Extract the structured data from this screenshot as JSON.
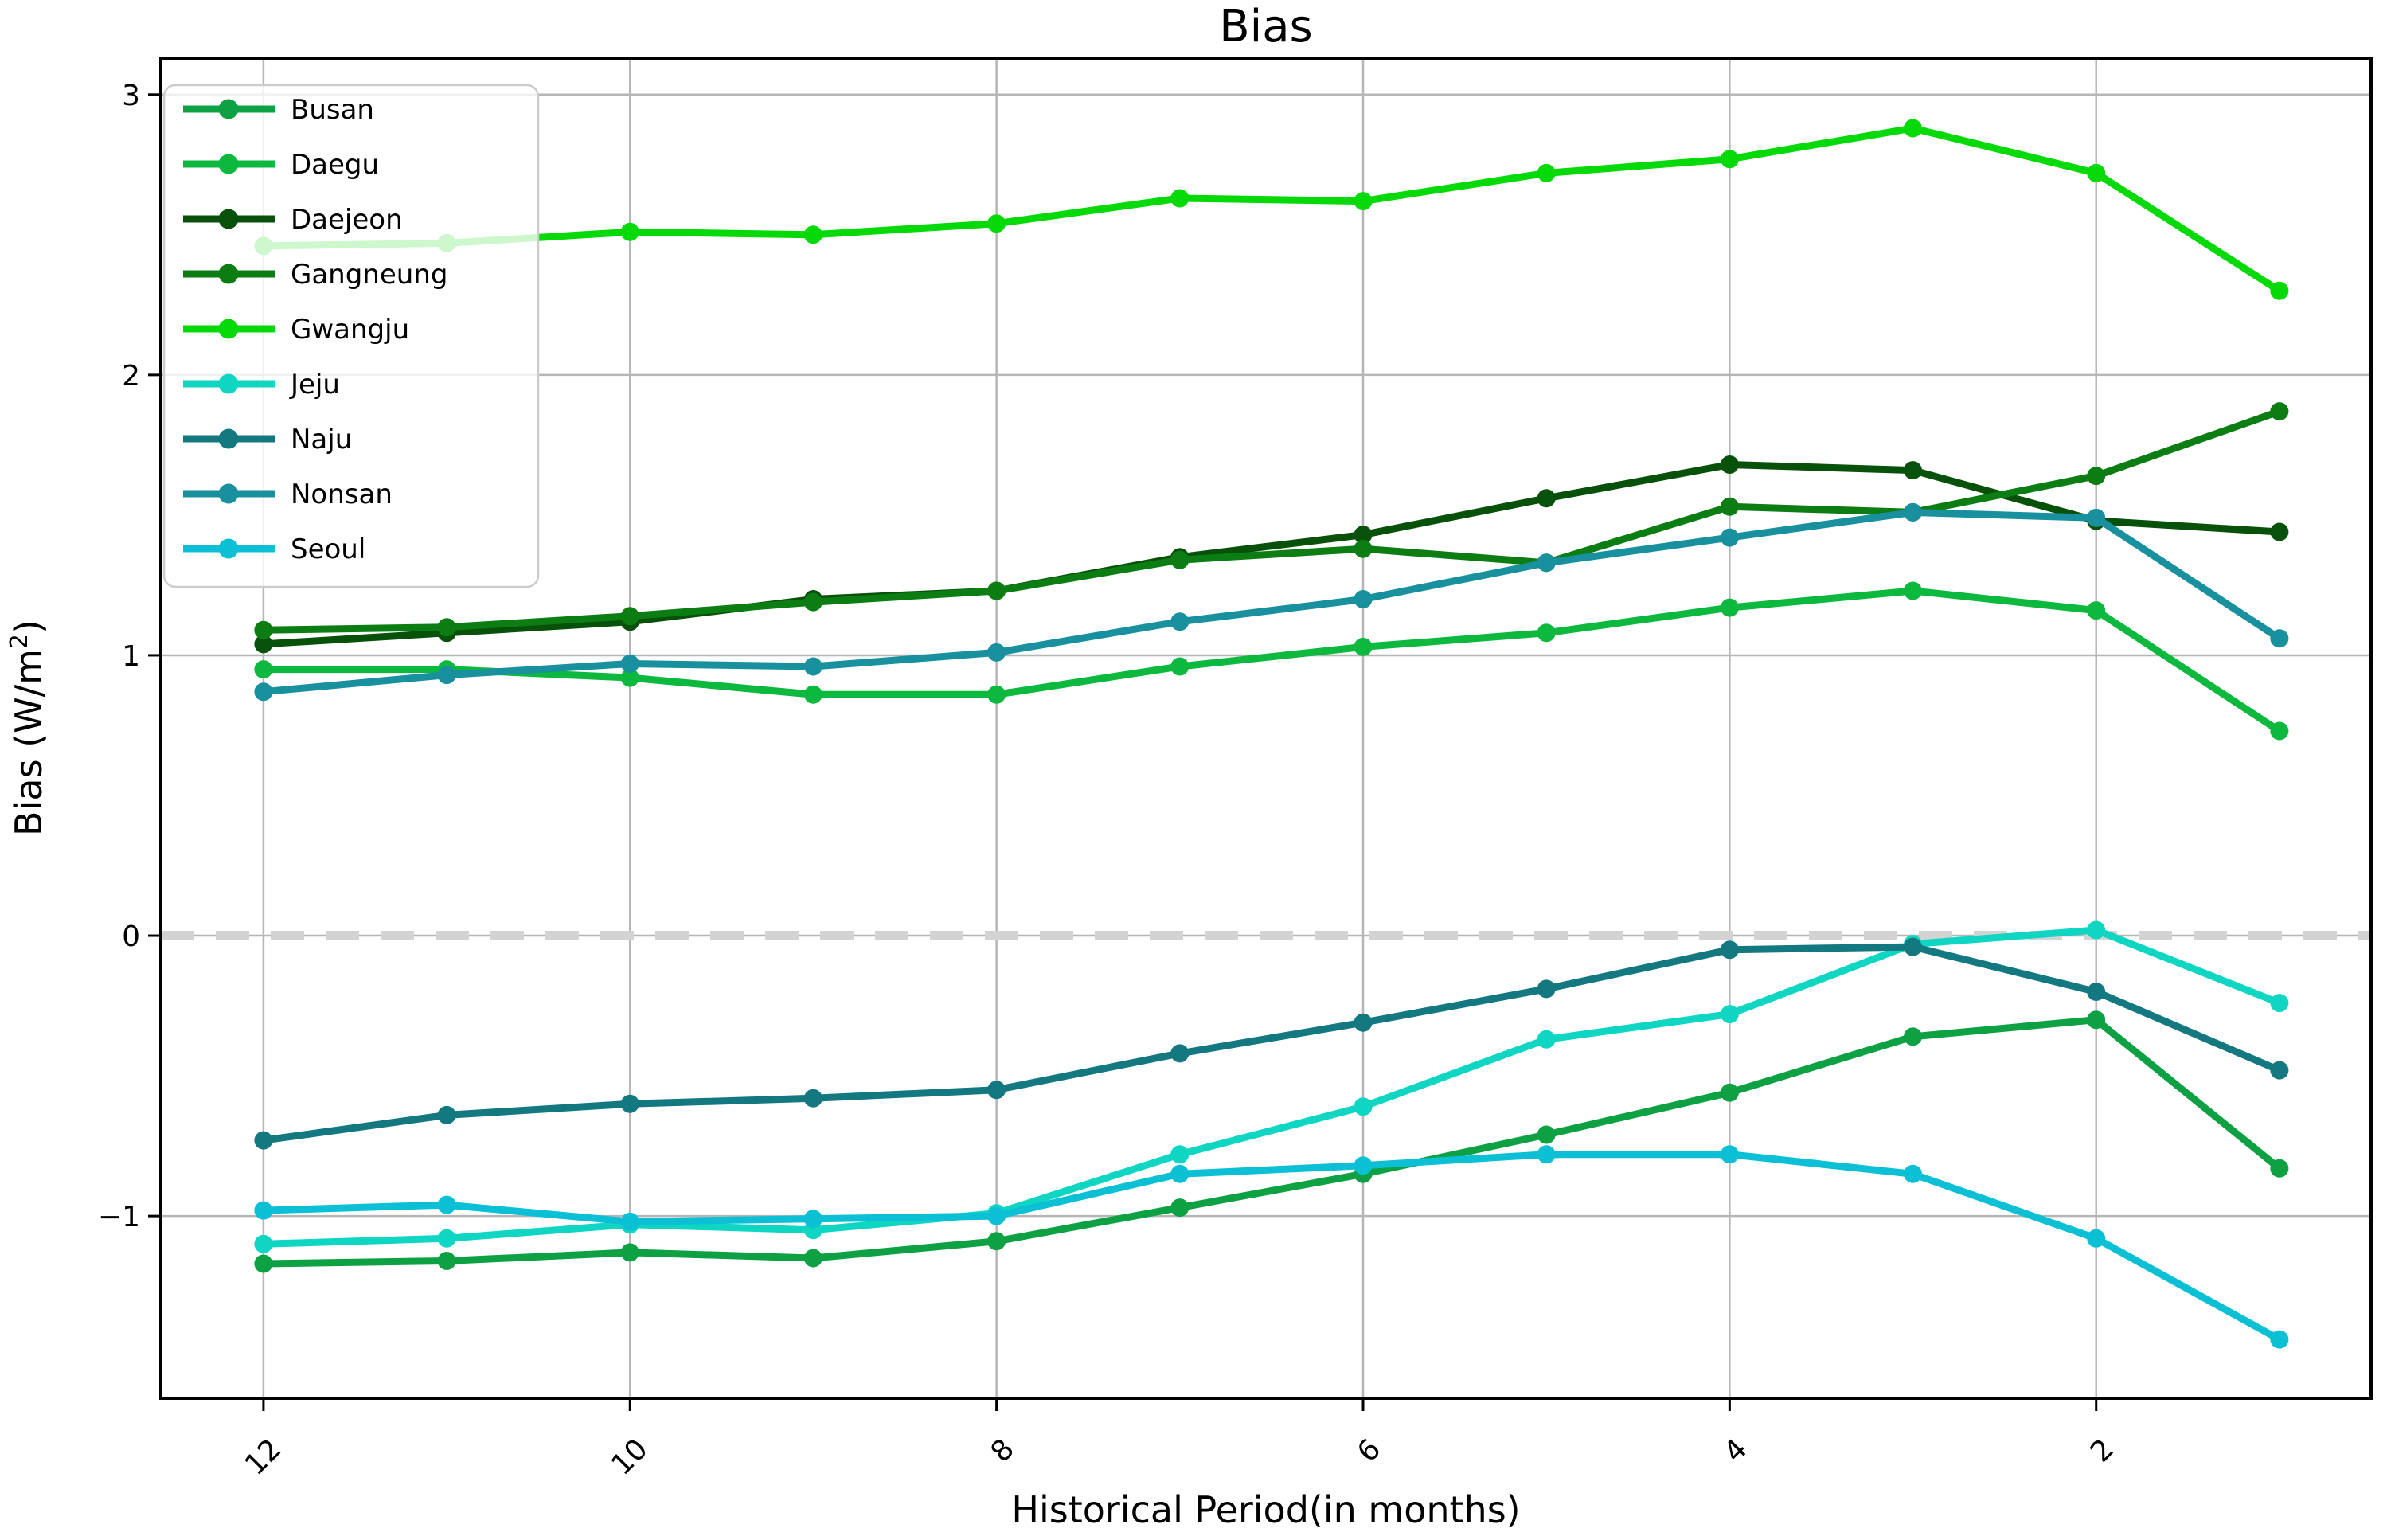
{
  "figure": {
    "title": "Bias",
    "xlabel": "Historical Period(in months)",
    "ylabel": "Bias (W/m²)",
    "ylabel_parts": {
      "pre": "Bias (W/m",
      "sup": "2",
      "post": ")"
    }
  },
  "chart_data": {
    "type": "line",
    "title": "Bias",
    "xlabel": "Historical Period(in months)",
    "ylabel": "Bias (W/m²)",
    "x": [
      12,
      11,
      10,
      9,
      8,
      7,
      6,
      5,
      4,
      3,
      2,
      1
    ],
    "x_axis_reversed": true,
    "xlim": [
      12.56,
      0.5
    ],
    "ylim": [
      -1.65,
      3.13
    ],
    "xticks": [
      12,
      10,
      8,
      6,
      4,
      2
    ],
    "yticks": [
      3,
      2,
      1,
      0,
      -1
    ],
    "xtick_labels": [
      "12",
      "10",
      "8",
      "6",
      "4",
      "2"
    ],
    "ytick_labels": [
      "3",
      "2",
      "1",
      "0",
      "−1"
    ],
    "grid": true,
    "grid_color": "#b6b6b6",
    "legend_position": "upper left",
    "marker": "o",
    "reference_line": {
      "y": 0,
      "color": "#d3d3d3",
      "style": "dashed",
      "linewidth": 12
    },
    "series": [
      {
        "name": "Busan",
        "color": "#0da144",
        "values": [
          -1.17,
          -1.16,
          -1.13,
          -1.15,
          -1.09,
          -0.97,
          -0.85,
          -0.71,
          -0.56,
          -0.36,
          -0.3,
          -0.83
        ]
      },
      {
        "name": "Daegu",
        "color": "#0cb83d",
        "values": [
          0.95,
          0.95,
          0.92,
          0.86,
          0.86,
          0.96,
          1.03,
          1.08,
          1.17,
          1.23,
          1.16,
          0.73
        ]
      },
      {
        "name": "Daejeon",
        "color": "#07510a",
        "values": [
          1.04,
          1.08,
          1.12,
          1.2,
          1.23,
          1.35,
          1.43,
          1.56,
          1.68,
          1.66,
          1.48,
          1.44
        ]
      },
      {
        "name": "Gangneung",
        "color": "#0c7d12",
        "values": [
          1.09,
          1.1,
          1.14,
          1.19,
          1.23,
          1.34,
          1.38,
          1.33,
          1.53,
          1.51,
          1.64,
          1.87
        ]
      },
      {
        "name": "Gwangju",
        "color": "#05d908",
        "values": [
          2.46,
          2.47,
          2.51,
          2.5,
          2.54,
          2.63,
          2.62,
          2.72,
          2.77,
          2.88,
          2.72,
          2.3
        ]
      },
      {
        "name": "Jeju",
        "color": "#0ed6c2",
        "values": [
          -1.1,
          -1.08,
          -1.03,
          -1.05,
          -0.99,
          -0.78,
          -0.61,
          -0.37,
          -0.28,
          -0.03,
          0.02,
          -0.24
        ]
      },
      {
        "name": "Naju",
        "color": "#13787f",
        "values": [
          -0.73,
          -0.64,
          -0.6,
          -0.58,
          -0.55,
          -0.42,
          -0.31,
          -0.19,
          -0.05,
          -0.04,
          -0.2,
          -0.48
        ]
      },
      {
        "name": "Nonsan",
        "color": "#18909e",
        "values": [
          0.87,
          0.93,
          0.97,
          0.96,
          1.01,
          1.12,
          1.2,
          1.33,
          1.42,
          1.51,
          1.49,
          1.06
        ]
      },
      {
        "name": "Seoul",
        "color": "#0bc0d4",
        "values": [
          -0.98,
          -0.96,
          -1.02,
          -1.01,
          -1.0,
          -0.85,
          -0.82,
          -0.78,
          -0.78,
          -0.85,
          -1.08,
          -1.44
        ]
      }
    ]
  }
}
